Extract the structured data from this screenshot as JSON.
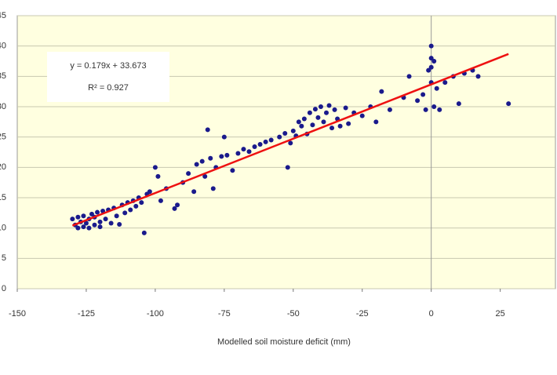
{
  "chart_data": {
    "type": "scatter",
    "x_label": "Modelled soil moisture deficit (mm)",
    "annotations": [
      "y = 0.179x + 33.673",
      "R² = 0.927"
    ],
    "trendline": {
      "slope": 0.179,
      "intercept": 33.673,
      "color": "#ee1111"
    },
    "color": "#1a1a8c",
    "x": [
      -130,
      -129,
      -128,
      -128,
      -127,
      -126,
      -126,
      -125,
      -124,
      -124,
      -123,
      -122,
      -122,
      -121,
      -120,
      -120,
      -119,
      -118,
      -117,
      -116,
      -115,
      -114,
      -113,
      -112,
      -111,
      -110,
      -109,
      -108,
      -107,
      -106,
      -105,
      -104,
      -103,
      -102,
      -100,
      -99,
      -98,
      -96,
      -93,
      -92,
      -90,
      -88,
      -86,
      -85,
      -83,
      -82,
      -81,
      -80,
      -79,
      -78,
      -76,
      -75,
      -74,
      -72,
      -70,
      -68,
      -66,
      -64,
      -62,
      -60,
      -58,
      -55,
      -53,
      -52,
      -51,
      -50,
      -49,
      -48,
      -47,
      -46,
      -45,
      -44,
      -43,
      -42,
      -41,
      -40,
      -39,
      -38,
      -37,
      -36,
      -35,
      -34,
      -33,
      -31,
      -30,
      -28,
      -25,
      -22,
      -20,
      -18,
      -15,
      -10,
      -8,
      -5,
      -3,
      -2,
      -1,
      0,
      0,
      0,
      0,
      1,
      1,
      2,
      3,
      5,
      8,
      10,
      12,
      15,
      17,
      28
    ],
    "values": [
      11.5,
      10.5,
      10,
      11.8,
      11,
      10.2,
      12,
      10.8,
      11.5,
      10,
      12.3,
      10.5,
      11.8,
      12.6,
      11,
      10.2,
      12.8,
      11.5,
      13,
      10.8,
      13.3,
      12,
      10.6,
      13.8,
      12.5,
      14.2,
      13,
      14.5,
      13.6,
      15,
      14.2,
      9.2,
      15.6,
      16,
      20,
      18.5,
      14.5,
      16.5,
      13.2,
      13.8,
      17.5,
      19,
      16,
      20.5,
      21,
      18.5,
      26.2,
      21.5,
      16.5,
      20,
      21.8,
      25,
      22,
      19.5,
      22.3,
      23,
      22.6,
      23.4,
      23.8,
      24.2,
      24.5,
      25,
      25.6,
      20,
      24,
      26,
      25.2,
      27.5,
      26.8,
      28,
      25.5,
      29,
      27,
      29.6,
      28.2,
      30,
      27.5,
      29,
      30.2,
      26.5,
      29.5,
      28,
      26.8,
      29.8,
      27.2,
      29,
      28.5,
      30,
      27.5,
      32.5,
      29.5,
      31.5,
      35,
      31,
      32,
      29.5,
      36,
      40,
      38,
      36.5,
      34,
      37.5,
      30,
      33,
      29.5,
      34,
      35,
      30.5,
      35.5,
      36,
      35,
      30.5
    ],
    "xlim": [
      -150,
      45
    ],
    "xticks": [
      -150,
      -125,
      -100,
      -75,
      -50,
      -25,
      0,
      25
    ],
    "ylim": [
      0,
      45
    ],
    "yticks": [
      0,
      5,
      10,
      15,
      20,
      25,
      30,
      35,
      40,
      45
    ],
    "grid": true
  }
}
